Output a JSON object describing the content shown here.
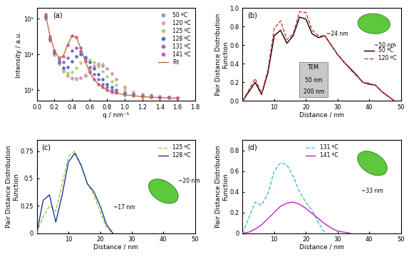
{
  "chart_data": [
    {
      "type": "scatter",
      "title": "(a)",
      "x_label": "q / nm⁻¹",
      "y_label": "Intensity / a.u.",
      "log": "y",
      "legend": "upper right",
      "xlim": [
        0,
        1.8
      ],
      "xticks": [
        {
          "value": 0,
          "label": "0.0"
        },
        0.2,
        0.4,
        0.6,
        0.8,
        {
          "value": 1,
          "label": "1.0"
        },
        1.2,
        1.4,
        1.6,
        1.8
      ],
      "ylim": [
        500,
        200000
      ],
      "yticks": [
        {
          "value": 1000,
          "label": "10³"
        },
        {
          "value": 10000,
          "label": "10⁴"
        },
        {
          "value": 100000,
          "label": "10⁵"
        }
      ],
      "x": [
        0.1,
        0.15,
        0.2,
        0.25,
        0.3,
        0.35,
        0.4,
        0.45,
        0.5,
        0.55,
        0.6,
        0.65,
        0.7,
        0.75,
        0.8,
        0.85,
        0.9,
        1.0,
        1.1,
        1.2,
        1.3,
        1.4,
        1.5,
        1.6
      ],
      "series": [
        {
          "name": "50 ºC",
          "color": "#7f9fbf",
          "marker": "o",
          "values": [
            100000,
            25000,
            10000,
            5500,
            3500,
            2600,
            2200,
            2100,
            2200,
            2600,
            3300,
            4300,
            5000,
            4900,
            4000,
            2900,
            2000,
            1200,
            900,
            780,
            720,
            680,
            650,
            620
          ]
        },
        {
          "name": "120 ºC",
          "color": "#e89ab0",
          "marker": "o",
          "values": [
            100000,
            24000,
            9500,
            5200,
            3300,
            2500,
            2100,
            2000,
            2200,
            2700,
            3600,
            4800,
            5500,
            5200,
            4100,
            2900,
            2000,
            1200,
            900,
            780,
            720,
            680,
            650,
            620
          ]
        },
        {
          "name": "125 ºC",
          "color": "#b5cf6b",
          "marker": "o",
          "values": [
            110000,
            26000,
            10000,
            5500,
            3600,
            3000,
            3200,
            4200,
            5800,
            6800,
            7000,
            6000,
            4600,
            3300,
            2400,
            1800,
            1400,
            1000,
            830,
            750,
            700,
            670,
            640,
            620
          ]
        },
        {
          "name": "128 ºC",
          "color": "#4a6fd0",
          "marker": "o",
          "values": [
            110000,
            27000,
            11000,
            6000,
            4200,
            4500,
            6500,
            9000,
            10000,
            8500,
            6000,
            4000,
            2800,
            2000,
            1500,
            1200,
            1000,
            850,
            760,
            700,
            670,
            650,
            630,
            610
          ]
        },
        {
          "name": "131 ºC",
          "color": "#9a62c0",
          "marker": "o",
          "values": [
            120000,
            28000,
            12000,
            7000,
            6000,
            8000,
            13000,
            15000,
            12000,
            7500,
            4500,
            2800,
            2000,
            1500,
            1200,
            1000,
            900,
            780,
            720,
            680,
            650,
            630,
            620,
            600
          ]
        },
        {
          "name": "141 ºC",
          "color": "#d05aa0",
          "marker": "o",
          "values": [
            130000,
            32000,
            13000,
            8000,
            9000,
            18000,
            34000,
            30000,
            15000,
            6500,
            3200,
            2000,
            1500,
            1200,
            1000,
            900,
            830,
            750,
            700,
            660,
            640,
            620,
            610,
            600
          ]
        },
        {
          "name": "Fit",
          "type": "line",
          "color": "#c0703a",
          "line_style": "solid",
          "values": [
            130000,
            32000,
            13000,
            8000,
            9000,
            18000,
            34000,
            30000,
            15000,
            6500,
            3200,
            2000,
            1500,
            1200,
            1000,
            900,
            830,
            750,
            700,
            660,
            640,
            620,
            610,
            600
          ]
        }
      ]
    },
    {
      "type": "line",
      "title": "(b)",
      "x_label": "Distance / nm",
      "y_label": "Pair Distance Distribution Function",
      "legend": "center right",
      "xlim": [
        0,
        50
      ],
      "xticks": [
        10,
        20,
        30,
        40,
        50
      ],
      "ylim": [
        0,
        1.0
      ],
      "yticks": [
        {
          "value": 0,
          "label": "0.0"
        },
        0.2,
        0.4,
        0.6,
        0.8,
        {
          "value": 1.0,
          "label": "1.0"
        }
      ],
      "annotations": [
        "~24 nm",
        "~50 nm",
        "TEM",
        "50 nm",
        "200 nm"
      ],
      "series": [
        {
          "name": "50 ºC",
          "color": "#000000",
          "line_style": "solid",
          "x": [
            0,
            2,
            4,
            6,
            8,
            10,
            12,
            14,
            16,
            18,
            20,
            22,
            24,
            26,
            28,
            30,
            32,
            34,
            36,
            38,
            40,
            42,
            44,
            46,
            48
          ],
          "values": [
            0,
            0.1,
            0.2,
            0.07,
            0.3,
            0.7,
            0.76,
            0.62,
            0.7,
            0.9,
            0.88,
            0.72,
            0.68,
            0.7,
            0.6,
            0.5,
            0.42,
            0.35,
            0.28,
            0.2,
            0.18,
            0.17,
            0.1,
            0.05,
            0
          ]
        },
        {
          "name": "120 ºC",
          "color": "#e03030",
          "line_style": "dashed",
          "x": [
            0,
            2,
            4,
            6,
            8,
            10,
            12,
            14,
            16,
            18,
            20,
            22,
            24,
            26,
            28,
            30,
            32,
            34,
            36,
            38,
            40,
            42,
            44,
            46,
            48
          ],
          "values": [
            0,
            0.12,
            0.24,
            0.08,
            0.33,
            0.78,
            0.86,
            0.66,
            0.72,
            0.96,
            0.95,
            0.76,
            0.7,
            0.7,
            0.6,
            0.5,
            0.42,
            0.34,
            0.27,
            0.2,
            0.19,
            0.17,
            0.1,
            0.05,
            0
          ]
        }
      ]
    },
    {
      "type": "line",
      "title": "(c)",
      "x_label": "Distance / nm",
      "y_label": "Pair Distance Distribution Function",
      "legend": "upper right",
      "xlim": [
        0,
        50
      ],
      "xticks": [
        10,
        20,
        30,
        40,
        50
      ],
      "ylim": [
        0,
        0.85
      ],
      "yticks": [
        0,
        0.25,
        0.5,
        0.75
      ],
      "annotations": [
        "~17 nm",
        "~20 nm"
      ],
      "series": [
        {
          "name": "125 ºC",
          "color": "#9acd32",
          "line_style": "dashed",
          "x": [
            0,
            2,
            4,
            6,
            8,
            10,
            12,
            14,
            16,
            18,
            20,
            22,
            24
          ],
          "values": [
            0,
            0.15,
            0.25,
            0.2,
            0.45,
            0.7,
            0.75,
            0.62,
            0.45,
            0.35,
            0.2,
            0.05,
            0
          ]
        },
        {
          "name": "128 ºC",
          "color": "#1f3a93",
          "line_style": "solid",
          "x": [
            0,
            2,
            4,
            6,
            8,
            10,
            12,
            14,
            16,
            18,
            20,
            22,
            24
          ],
          "values": [
            0,
            0.3,
            0.35,
            0.1,
            0.35,
            0.65,
            0.73,
            0.62,
            0.45,
            0.38,
            0.25,
            0.08,
            0
          ]
        }
      ]
    },
    {
      "type": "line",
      "title": "(d)",
      "x_label": "Distance / nm",
      "y_label": "Pair Distance Distribution Function",
      "legend": "upper center",
      "xlim": [
        0,
        50
      ],
      "xticks": [
        10,
        20,
        30,
        40,
        50
      ],
      "ylim": [
        0,
        0.9
      ],
      "yticks": [
        0,
        0.2,
        0.4,
        0.6,
        0.8
      ],
      "annotations": [
        "~33 nm"
      ],
      "series": [
        {
          "name": "131 ºC",
          "color": "#40c0d0",
          "line_style": "dashed",
          "x": [
            0,
            2,
            4,
            6,
            8,
            10,
            12,
            14,
            16,
            18,
            20,
            22,
            24,
            26
          ],
          "values": [
            0,
            0.15,
            0.3,
            0.27,
            0.38,
            0.6,
            0.68,
            0.66,
            0.55,
            0.4,
            0.3,
            0.22,
            0.1,
            0
          ]
        },
        {
          "name": "141 ºC",
          "color": "#c020c0",
          "line_style": "solid",
          "x": [
            0,
            2,
            4,
            6,
            8,
            10,
            12,
            14,
            16,
            18,
            20,
            22,
            24,
            26,
            28,
            30,
            32,
            34
          ],
          "values": [
            0,
            0.01,
            0.04,
            0.08,
            0.14,
            0.2,
            0.26,
            0.29,
            0.3,
            0.28,
            0.24,
            0.19,
            0.14,
            0.09,
            0.05,
            0.02,
            0.01,
            0
          ]
        }
      ]
    }
  ]
}
